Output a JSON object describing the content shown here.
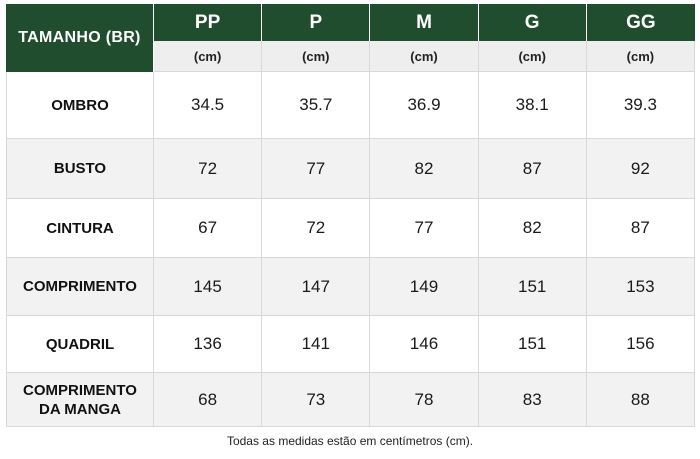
{
  "header": {
    "title": "TAMANHO (BR)",
    "sizes": [
      "PP",
      "P",
      "M",
      "G",
      "GG"
    ],
    "unit": "(cm)"
  },
  "rows": [
    {
      "label": "OMBRO",
      "values": [
        "34.5",
        "35.7",
        "36.9",
        "38.1",
        "39.3"
      ]
    },
    {
      "label": "BUSTO",
      "values": [
        "72",
        "77",
        "82",
        "87",
        "92"
      ]
    },
    {
      "label": "CINTURA",
      "values": [
        "67",
        "72",
        "77",
        "82",
        "87"
      ]
    },
    {
      "label": "COMPRIMENTO",
      "values": [
        "145",
        "147",
        "149",
        "151",
        "153"
      ]
    },
    {
      "label": "QUADRIL",
      "values": [
        "136",
        "141",
        "146",
        "151",
        "156"
      ]
    },
    {
      "label": "COMPRIMENTO DA MANGA",
      "values": [
        "68",
        "73",
        "78",
        "83",
        "88"
      ]
    }
  ],
  "footnote": "Todas as medidas estão em centímetros (cm).",
  "colors": {
    "header_green": "#1f4d2e",
    "row_shade": "#f2f2f2"
  }
}
